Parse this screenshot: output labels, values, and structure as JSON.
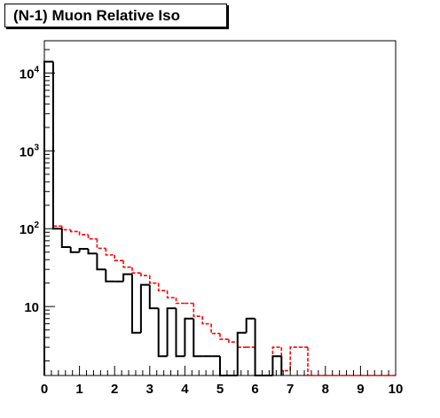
{
  "chart_data": {
    "type": "step-histogram",
    "title": "(N-1) Muon Relative Iso",
    "xlabel": "",
    "ylabel": "",
    "xlim": [
      0,
      10
    ],
    "ylim": [
      1.3,
      26000
    ],
    "ylog": true,
    "grid": false,
    "x_tick_labels": [
      "0",
      "1",
      "2",
      "3",
      "4",
      "5",
      "6",
      "7",
      "8",
      "9",
      "10"
    ],
    "y_tick_labels": [
      {
        "value": 10,
        "base": "10",
        "exp": ""
      },
      {
        "value": 100,
        "base": "10",
        "exp": "2"
      },
      {
        "value": 1000,
        "base": "10",
        "exp": "3"
      },
      {
        "value": 10000,
        "base": "10",
        "exp": "4"
      }
    ],
    "bin_width": 0.25,
    "series": [
      {
        "color": "#000000",
        "style": "solid",
        "bins": [
          [
            0.0,
            14000
          ],
          [
            0.25,
            100
          ],
          [
            0.5,
            58
          ],
          [
            0.75,
            50
          ],
          [
            1.0,
            55
          ],
          [
            1.25,
            48
          ],
          [
            1.5,
            30
          ],
          [
            1.75,
            21
          ],
          [
            2.0,
            21
          ],
          [
            2.25,
            26
          ],
          [
            2.5,
            4.6
          ],
          [
            2.75,
            19
          ],
          [
            3.0,
            9.5
          ],
          [
            3.25,
            2.3
          ],
          [
            3.5,
            9.5
          ],
          [
            3.75,
            2.3
          ],
          [
            4.0,
            7.0
          ],
          [
            4.25,
            2.3
          ],
          [
            4.5,
            2.3
          ],
          [
            4.75,
            2.3
          ],
          [
            5.0,
            0
          ],
          [
            5.25,
            0
          ],
          [
            5.5,
            4.6
          ],
          [
            5.75,
            7.0
          ],
          [
            6.0,
            0
          ],
          [
            6.25,
            0
          ],
          [
            6.5,
            2.3
          ]
        ]
      },
      {
        "color": "#ff0000",
        "style": "dashed",
        "bins": [
          [
            0.0,
            14000
          ],
          [
            0.25,
            108
          ],
          [
            0.5,
            97
          ],
          [
            0.75,
            92
          ],
          [
            1.0,
            84
          ],
          [
            1.25,
            74
          ],
          [
            1.5,
            56
          ],
          [
            1.75,
            46
          ],
          [
            2.0,
            39
          ],
          [
            2.25,
            32
          ],
          [
            2.5,
            27
          ],
          [
            2.75,
            25
          ],
          [
            3.0,
            20
          ],
          [
            3.25,
            16
          ],
          [
            3.5,
            13
          ],
          [
            3.75,
            11
          ],
          [
            4.0,
            11
          ],
          [
            4.25,
            7.5
          ],
          [
            4.5,
            6.0
          ],
          [
            4.75,
            4.5
          ],
          [
            5.0,
            3.8
          ],
          [
            5.25,
            3.5
          ],
          [
            5.5,
            3.0
          ],
          [
            5.75,
            3.0
          ],
          [
            6.0,
            0
          ],
          [
            6.25,
            0
          ],
          [
            6.5,
            3.0
          ],
          [
            6.75,
            1.5
          ],
          [
            7.0,
            3.0
          ],
          [
            7.25,
            3.0
          ],
          [
            7.5,
            0
          ],
          [
            7.75,
            0
          ],
          [
            8.0,
            0
          ],
          [
            8.25,
            0
          ],
          [
            8.5,
            0
          ],
          [
            8.75,
            0
          ],
          [
            9.0,
            0
          ],
          [
            9.25,
            0
          ],
          [
            9.5,
            0
          ],
          [
            9.75,
            0
          ]
        ]
      }
    ]
  }
}
